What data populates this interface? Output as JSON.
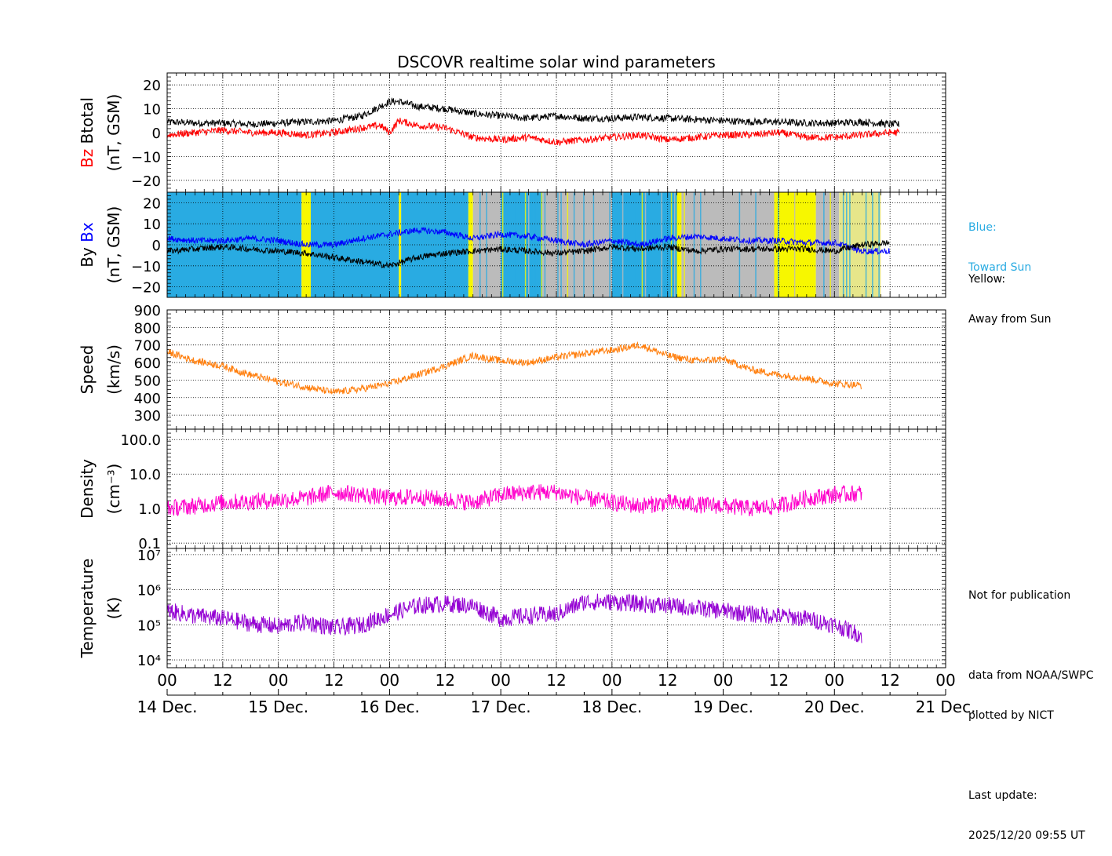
{
  "chart_data": {
    "type": "line",
    "title": "DSCOVR realtime solar wind parameters",
    "time_axis": {
      "start": "2025-12-14 00:00",
      "end": "2025-12-21 00:00",
      "hour_tick_labels": [
        "00",
        "12",
        "00",
        "12",
        "00",
        "12",
        "00",
        "12",
        "00",
        "12",
        "00",
        "12",
        "00",
        "12",
        "00"
      ],
      "date_labels": [
        "14 Dec.",
        "15 Dec.",
        "16 Dec.",
        "17 Dec.",
        "18 Dec.",
        "19 Dec.",
        "20 Dec.",
        "21 Dec."
      ]
    },
    "panels": [
      {
        "id": "btotal_bz",
        "ylabel": [
          "(nT, GSM)"
        ],
        "ylabel_parts": [
          {
            "text": "Bz",
            "color": "#ff0000"
          },
          {
            "text": "Btotal",
            "color": "#000000"
          }
        ],
        "scale": "linear",
        "ylim": [
          -25,
          25
        ],
        "ticks": [
          20,
          10,
          0,
          -10,
          -20
        ],
        "tick_labels": [
          "20",
          "10",
          "0",
          "−10",
          "−20"
        ],
        "series": [
          {
            "name": "Btotal",
            "color": "#000000",
            "x_hours": [
              0,
              6,
              12,
              18,
              24,
              30,
              36,
              42,
              46,
              48,
              50,
              54,
              60,
              66,
              72,
              78,
              84,
              90,
              96,
              102,
              108,
              114,
              120,
              126,
              132,
              138,
              144,
              150,
              156,
              158
            ],
            "values": [
              4.5,
              4,
              4,
              3.5,
              4,
              4.5,
              5,
              7,
              11,
              13,
              13,
              11,
              10,
              8,
              7,
              6,
              7,
              6,
              6,
              6.5,
              6,
              5.5,
              5,
              4.5,
              4.5,
              4,
              4,
              4.5,
              3.5,
              3.5
            ]
          },
          {
            "name": "Bz",
            "color": "#ff0000",
            "x_hours": [
              0,
              6,
              12,
              18,
              24,
              30,
              36,
              42,
              46,
              48,
              50,
              54,
              60,
              66,
              72,
              78,
              84,
              90,
              96,
              102,
              108,
              114,
              120,
              126,
              132,
              138,
              144,
              150,
              156,
              158
            ],
            "values": [
              -1,
              0,
              1,
              0,
              0,
              -1,
              0,
              2,
              3,
              0,
              5,
              3,
              2,
              -2,
              -3,
              -2,
              -4,
              -3,
              -2,
              -1,
              -3,
              -2,
              -1,
              -1,
              0,
              -2,
              -2,
              -1,
              0,
              0
            ]
          }
        ]
      },
      {
        "id": "by_bx",
        "ylabel": [
          "(nT, GSM)"
        ],
        "ylabel_parts": [
          {
            "text": "By",
            "color": "#000000"
          },
          {
            "text": "Bx",
            "color": "#0000ff"
          }
        ],
        "scale": "linear",
        "ylim": [
          -25,
          25
        ],
        "ticks": [
          20,
          10,
          0,
          -10,
          -20
        ],
        "tick_labels": [
          "20",
          "10",
          "0",
          "−10",
          "−20"
        ],
        "sector_colors": {
          "toward": "#29abe2",
          "away": "#f7f700",
          "unknown": "#bbbbbb",
          "yellowish": "#e6e68a"
        },
        "sector_bands": [
          {
            "from": 0,
            "to": 29,
            "sector": "toward"
          },
          {
            "from": 29,
            "to": 31,
            "sector": "away"
          },
          {
            "from": 31,
            "to": 50,
            "sector": "toward"
          },
          {
            "from": 50,
            "to": 50.5,
            "sector": "away"
          },
          {
            "from": 50.5,
            "to": 65,
            "sector": "toward"
          },
          {
            "from": 65,
            "to": 66,
            "sector": "away"
          },
          {
            "from": 66,
            "to": 72,
            "sector": "unknown"
          },
          {
            "from": 72,
            "to": 81,
            "sector": "toward"
          },
          {
            "from": 81,
            "to": 96,
            "sector": "unknown"
          },
          {
            "from": 96,
            "to": 110,
            "sector": "toward"
          },
          {
            "from": 110,
            "to": 111,
            "sector": "away"
          },
          {
            "from": 111,
            "to": 131,
            "sector": "unknown"
          },
          {
            "from": 131,
            "to": 140,
            "sector": "away"
          },
          {
            "from": 140,
            "to": 145,
            "sector": "unknown"
          },
          {
            "from": 145,
            "to": 154,
            "sector": "yellowish"
          }
        ],
        "series": [
          {
            "name": "Bx",
            "color": "#0000ff",
            "x_hours": [
              0,
              6,
              12,
              18,
              24,
              30,
              36,
              42,
              48,
              54,
              60,
              66,
              72,
              78,
              84,
              90,
              96,
              102,
              108,
              114,
              120,
              126,
              132,
              138,
              144,
              150,
              156
            ],
            "values": [
              3,
              2,
              2,
              3,
              2,
              0,
              0,
              3,
              5,
              7,
              6,
              3,
              5,
              4,
              2,
              0,
              2,
              0,
              3,
              4,
              3,
              2,
              2,
              1,
              1,
              -3,
              -3
            ]
          },
          {
            "name": "By",
            "color": "#000000",
            "x_hours": [
              0,
              6,
              12,
              18,
              24,
              30,
              36,
              42,
              48,
              54,
              60,
              66,
              72,
              78,
              84,
              90,
              96,
              102,
              108,
              114,
              120,
              126,
              132,
              138,
              144,
              150,
              156
            ],
            "values": [
              -3,
              -2,
              -1,
              -2,
              -3,
              -4,
              -6,
              -8,
              -10,
              -6,
              -4,
              -3,
              -2,
              -3,
              -4,
              -3,
              -1,
              -2,
              -1,
              -3,
              -2,
              -2,
              -2,
              -2,
              -3,
              0,
              1
            ]
          }
        ]
      },
      {
        "id": "speed",
        "ylabel": [
          "Speed",
          "(km/s)"
        ],
        "scale": "linear",
        "ylim": [
          220,
          900
        ],
        "ticks": [
          900,
          800,
          700,
          600,
          500,
          400,
          300
        ],
        "tick_labels": [
          "900",
          "800",
          "700",
          "600",
          "500",
          "400",
          "300"
        ],
        "series": [
          {
            "name": "Speed",
            "color": "#ff7f0e",
            "x_hours": [
              0,
              6,
              12,
              18,
              24,
              30,
              36,
              42,
              48,
              54,
              60,
              66,
              72,
              78,
              84,
              90,
              92,
              96,
              102,
              108,
              114,
              120,
              126,
              132,
              138,
              144,
              150
            ],
            "values": [
              660,
              610,
              580,
              530,
              490,
              460,
              430,
              450,
              480,
              530,
              580,
              640,
              610,
              600,
              630,
              650,
              660,
              670,
              700,
              640,
              610,
              620,
              560,
              530,
              510,
              480,
              470
            ]
          }
        ]
      },
      {
        "id": "density",
        "ylabel": [
          "Density",
          "(cm⁻³)"
        ],
        "scale": "log",
        "ylim": [
          0.07,
          200
        ],
        "ticks": [
          100,
          10,
          1,
          0.1
        ],
        "tick_labels": [
          "100.0",
          "10.0",
          "1.0",
          "0.1"
        ],
        "series": [
          {
            "name": "Density",
            "color": "#ff00cc",
            "x_hours": [
              0,
              6,
              12,
              18,
              24,
              30,
              36,
              42,
              48,
              54,
              60,
              66,
              72,
              78,
              84,
              90,
              96,
              102,
              108,
              114,
              120,
              126,
              132,
              138,
              144,
              150
            ],
            "values": [
              1.0,
              1.2,
              1.5,
              1.6,
              1.8,
              2.0,
              3.0,
              2.5,
              2.0,
              2.2,
              1.8,
              1.5,
              2.5,
              3.0,
              3.0,
              2.0,
              1.5,
              1.2,
              1.5,
              1.3,
              1.2,
              1.0,
              1.2,
              2.0,
              2.5,
              2.8
            ]
          }
        ]
      },
      {
        "id": "temperature",
        "ylabel": [
          "Temperature",
          "(K)"
        ],
        "scale": "log",
        "ylim": [
          6000,
          15000000
        ],
        "ticks": [
          10000000,
          1000000,
          100000,
          10000
        ],
        "tick_labels": [
          "10⁷",
          "10⁶",
          "10⁵",
          "10⁴"
        ],
        "series": [
          {
            "name": "Temperature",
            "color": "#9400d3",
            "x_hours": [
              0,
              6,
              12,
              18,
              24,
              30,
              36,
              42,
              48,
              54,
              60,
              66,
              72,
              78,
              84,
              90,
              96,
              102,
              108,
              114,
              120,
              126,
              132,
              138,
              144,
              150
            ],
            "values": [
              250000,
              180000,
              150000,
              110000,
              90000,
              120000,
              80000,
              100000,
              200000,
              350000,
              400000,
              350000,
              150000,
              180000,
              200000,
              450000,
              450000,
              400000,
              350000,
              300000,
              250000,
              200000,
              180000,
              150000,
              100000,
              50000
            ]
          }
        ]
      }
    ]
  },
  "legend_notes": {
    "blue_line1": "Blue:",
    "blue_line2": "Toward Sun",
    "yellow_line1": "Yellow:",
    "yellow_line2": "Away from Sun"
  },
  "footer_notes": {
    "not_for_pub": "Not for publication",
    "data_from": "data from NOAA/SWPC",
    "plotted_by": "plotted by NICT",
    "last_update_label": "Last update:",
    "last_update_value": "2025/12/20 09:55 UT"
  },
  "colors": {
    "toward": "#29abe2",
    "yellow_text": "#000000",
    "grid": "#000000"
  }
}
